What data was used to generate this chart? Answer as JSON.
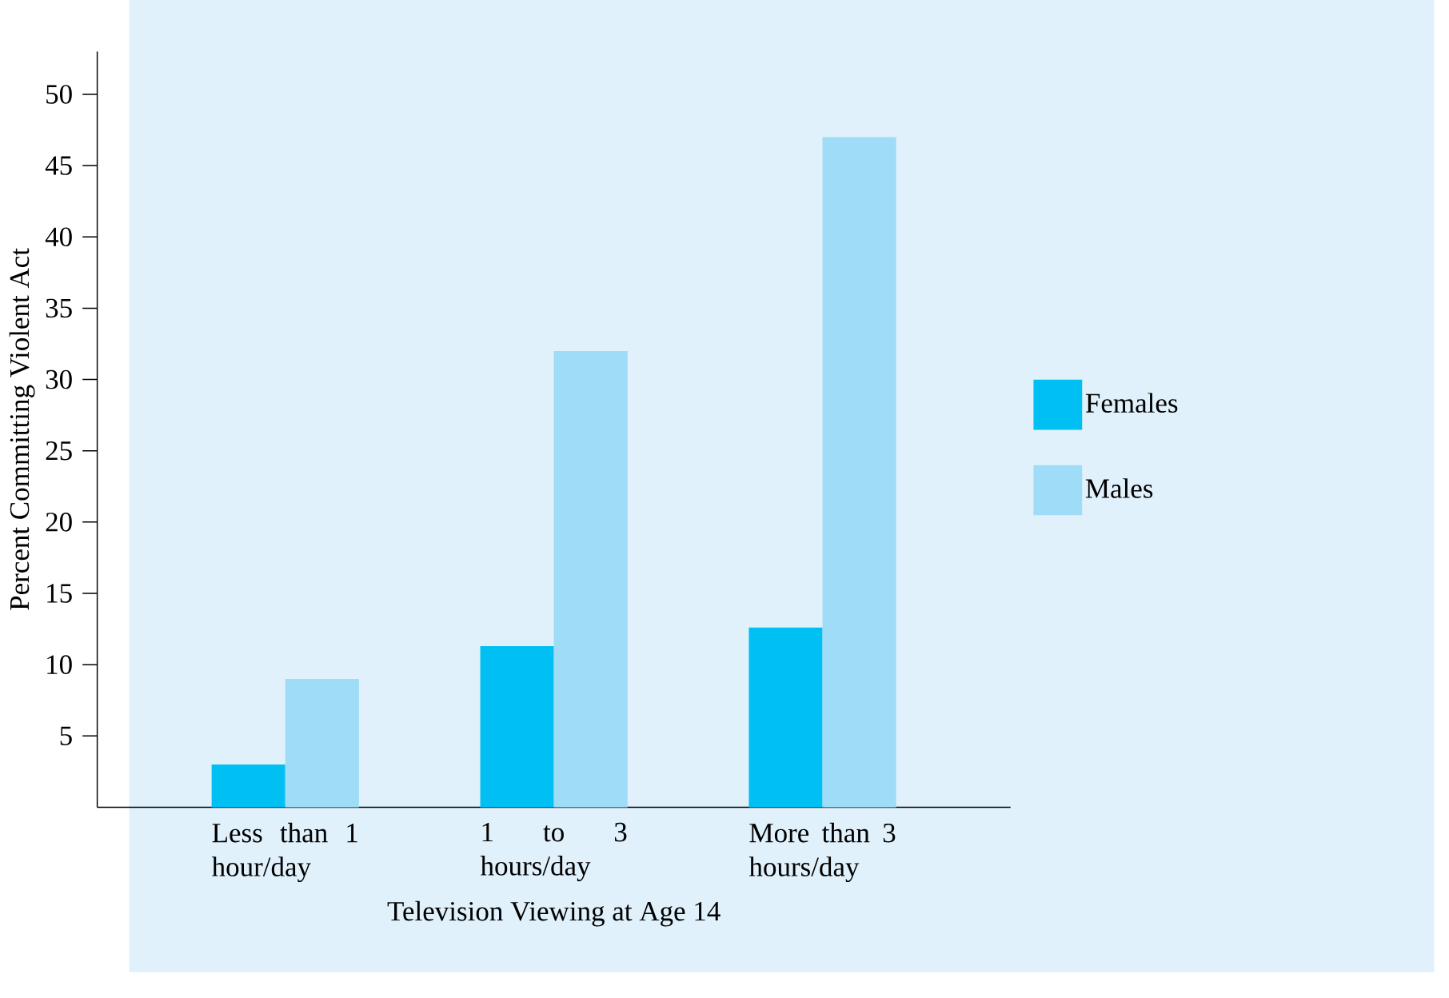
{
  "chart_data": {
    "type": "bar",
    "xlabel": "Television Viewing at Age 14",
    "ylabel": "Percent Committing Violent Act",
    "categories": [
      "Less than 1 hour/day",
      "1 to 3 hours/day",
      "More than 3 hours/day"
    ],
    "series": [
      {
        "name": "Females",
        "color": "#00bff3",
        "values": [
          3,
          11.3,
          12.6
        ]
      },
      {
        "name": "Males",
        "color": "#9edcf7",
        "values": [
          9,
          32,
          47
        ]
      }
    ],
    "ylim": [
      0,
      53
    ],
    "yticks": [
      5,
      10,
      15,
      20,
      25,
      30,
      35,
      40,
      45,
      50
    ],
    "legend": "right"
  }
}
